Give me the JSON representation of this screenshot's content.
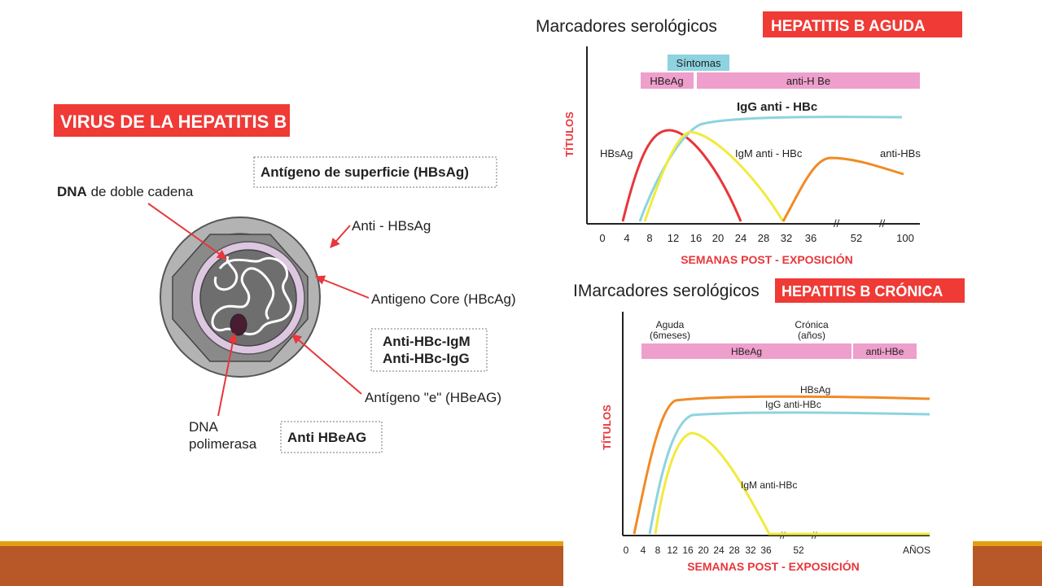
{
  "slide": {
    "accent_color": "#b85727",
    "accent_line_color": "#e2a011",
    "red_banner_color": "#ef3a36"
  },
  "virus": {
    "title": "VIRUS DE LA HEPATITIS B",
    "labels": {
      "dna_bold": "DNA",
      "dna_rest": " de doble cadena",
      "surface_antigen": "Antígeno de superficie (HBsAg)",
      "anti_hbsag": "Anti - HBsAg",
      "core_antigen": "Antigeno Core (HBcAg)",
      "anti_hbc_igm": "Anti-HBc-IgM",
      "anti_hbc_igg": "Anti-HBc-IgG",
      "e_antigen": "Antígeno \"e\" (HBeAG)",
      "dna_polymerase_1": "DNA",
      "dna_polymerase_2": "polimerasa",
      "anti_hbeag": "Anti HBeAG"
    }
  },
  "acute": {
    "title": "Marcadores serológicos",
    "badge": "HEPATITIS B AGUDA",
    "symptoms": "Síntomas",
    "hbeag_bar": "HBeAg",
    "anti_hbe_bar": "anti-H Be",
    "y_label": "TÍTULOS",
    "x_label": "SEMANAS POST - EXPOSICIÓN",
    "ticks": [
      "0",
      "4",
      "8",
      "12",
      "16",
      "20",
      "24",
      "28",
      "32",
      "36",
      "52",
      "100"
    ],
    "curve_labels": {
      "igg": "IgG anti - HBc",
      "hbsag": "HBsAg",
      "igm": "IgM anti - HBc",
      "anti_hbs": "anti-HBs"
    },
    "colors": {
      "hbsag": "#e8363a",
      "igg": "#8dd3e0",
      "igm": "#f2ea3c",
      "anti_hbs": "#f28a24"
    }
  },
  "chronic": {
    "title": "IMarcadores serológicos",
    "badge": "HEPATITIS B CRÓNICA",
    "acute_phase_1": "Aguda",
    "acute_phase_2": "(6meses)",
    "chronic_phase_1": "Crónica",
    "chronic_phase_2": "(años)",
    "hbeag_bar": "HBeAg",
    "anti_hbe_bar": "anti-HBe",
    "y_label": "TÍTULOS",
    "x_label": "SEMANAS POST - EXPOSICIÓN",
    "x_end_label": "AÑOS",
    "ticks": [
      "0",
      "4",
      "8",
      "12",
      "16",
      "20",
      "24",
      "28",
      "32",
      "36",
      "52"
    ],
    "curve_labels": {
      "hbsag": "HBsAg",
      "igg": "IgG anti-HBc",
      "igm": "IgM anti-HBc"
    },
    "colors": {
      "hbsag": "#f28a24",
      "igg": "#8dd3e0",
      "igm": "#f2ea3c"
    }
  }
}
